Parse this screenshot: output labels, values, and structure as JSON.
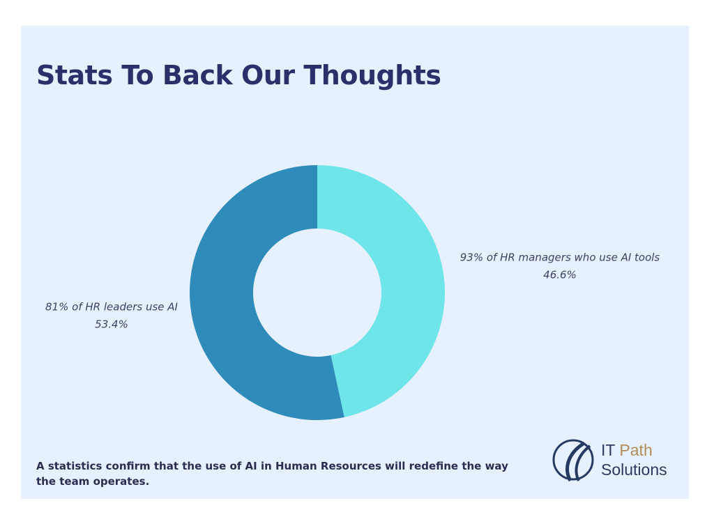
{
  "chart_data": {
    "type": "donut",
    "title": "Stats To Back Our Thoughts",
    "categories": [
      "93% of HR managers who use AI tools",
      "81% of HR leaders use AI"
    ],
    "values": [
      46.6,
      53.4
    ],
    "value_labels": [
      "46.6%",
      "53.4%"
    ],
    "colors": [
      "#6de5e9",
      "#2e8bba"
    ]
  },
  "caption": "A statistics confirm that the use of AI in Human Resources will redefine the way the team operates.",
  "logo": {
    "first": "IT",
    "second": "Path",
    "third": "Solutions"
  }
}
